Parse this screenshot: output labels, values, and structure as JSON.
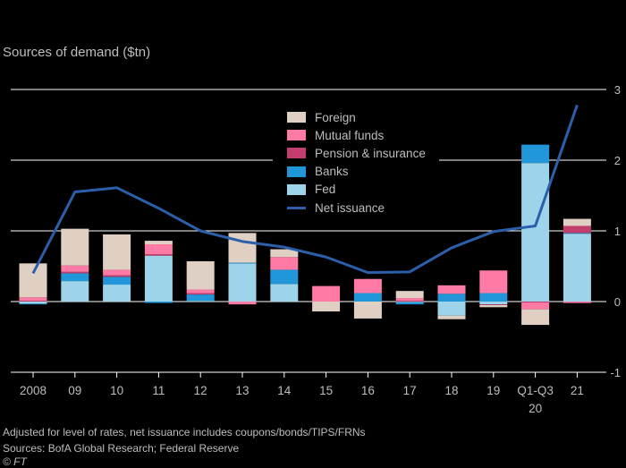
{
  "subtitle": "Sources of demand ($tn)",
  "colors": {
    "foreign": "#e0cfc3",
    "mutual_funds": "#ff7aa4",
    "pension_insurance": "#c33d6e",
    "banks": "#2196d8",
    "fed": "#9ed4ea",
    "net_issuance": "#2c5faa",
    "gridline": "#ffffff",
    "text": "#bdbdbd"
  },
  "legend": [
    {
      "key": "foreign",
      "label": "Foreign",
      "kind": "box"
    },
    {
      "key": "mutual_funds",
      "label": "Mutual funds",
      "kind": "box"
    },
    {
      "key": "pension_insurance",
      "label": "Pension & insurance",
      "kind": "box"
    },
    {
      "key": "banks",
      "label": "Banks",
      "kind": "box"
    },
    {
      "key": "fed",
      "label": "Fed",
      "kind": "box"
    },
    {
      "key": "net_issuance",
      "label": "Net issuance",
      "kind": "line"
    }
  ],
  "notes": {
    "adjusted": "Adjusted for level of rates, net issuance includes coupons/bonds/TIPS/FRNs",
    "sources": "Sources: BofA Global Research; Federal Reserve",
    "credit": "© FT"
  },
  "chart_data": {
    "type": "bar",
    "stacked": true,
    "categories": [
      "2008",
      "09",
      "10",
      "11",
      "12",
      "13",
      "14",
      "15",
      "16",
      "17",
      "18",
      "19",
      "Q1-Q3\n20",
      "21"
    ],
    "ylim": [
      -1,
      3
    ],
    "yticks": [
      -1,
      0,
      1,
      2,
      3
    ],
    "grid": true,
    "y_axis_side": "right",
    "legend_position": "top-center",
    "series": [
      {
        "name": "Fed",
        "key": "fed",
        "values": [
          -0.03,
          0.29,
          0.24,
          0.65,
          0.01,
          0.54,
          0.25,
          0.0,
          0.0,
          -0.01,
          -0.2,
          -0.04,
          1.96,
          0.96
        ]
      },
      {
        "name": "Banks",
        "key": "banks",
        "values": [
          -0.01,
          0.11,
          0.11,
          -0.02,
          0.09,
          0.01,
          0.2,
          0.0,
          0.12,
          -0.03,
          0.11,
          0.12,
          0.26,
          0.01
        ]
      },
      {
        "name": "Pension & insurance",
        "key": "pension_insurance",
        "values": [
          0.01,
          0.02,
          0.02,
          0.02,
          0.02,
          0.0,
          0.0,
          0.0,
          0.0,
          0.01,
          0.0,
          -0.01,
          -0.01,
          0.1
        ]
      },
      {
        "name": "Mutual funds",
        "key": "mutual_funds",
        "values": [
          0.05,
          0.09,
          0.08,
          0.14,
          0.05,
          -0.04,
          0.18,
          0.22,
          0.2,
          0.04,
          0.12,
          0.32,
          -0.1,
          -0.02
        ]
      },
      {
        "name": "Foreign",
        "key": "foreign",
        "values": [
          0.48,
          0.52,
          0.5,
          0.05,
          0.4,
          0.42,
          0.11,
          -0.14,
          -0.24,
          0.1,
          -0.05,
          -0.03,
          -0.22,
          0.1
        ]
      }
    ],
    "line": {
      "name": "Net issuance",
      "key": "net_issuance",
      "values": [
        0.4,
        1.55,
        1.61,
        1.32,
        1.0,
        0.85,
        0.77,
        0.63,
        0.41,
        0.42,
        0.76,
        0.99,
        1.07,
        2.78
      ]
    }
  }
}
